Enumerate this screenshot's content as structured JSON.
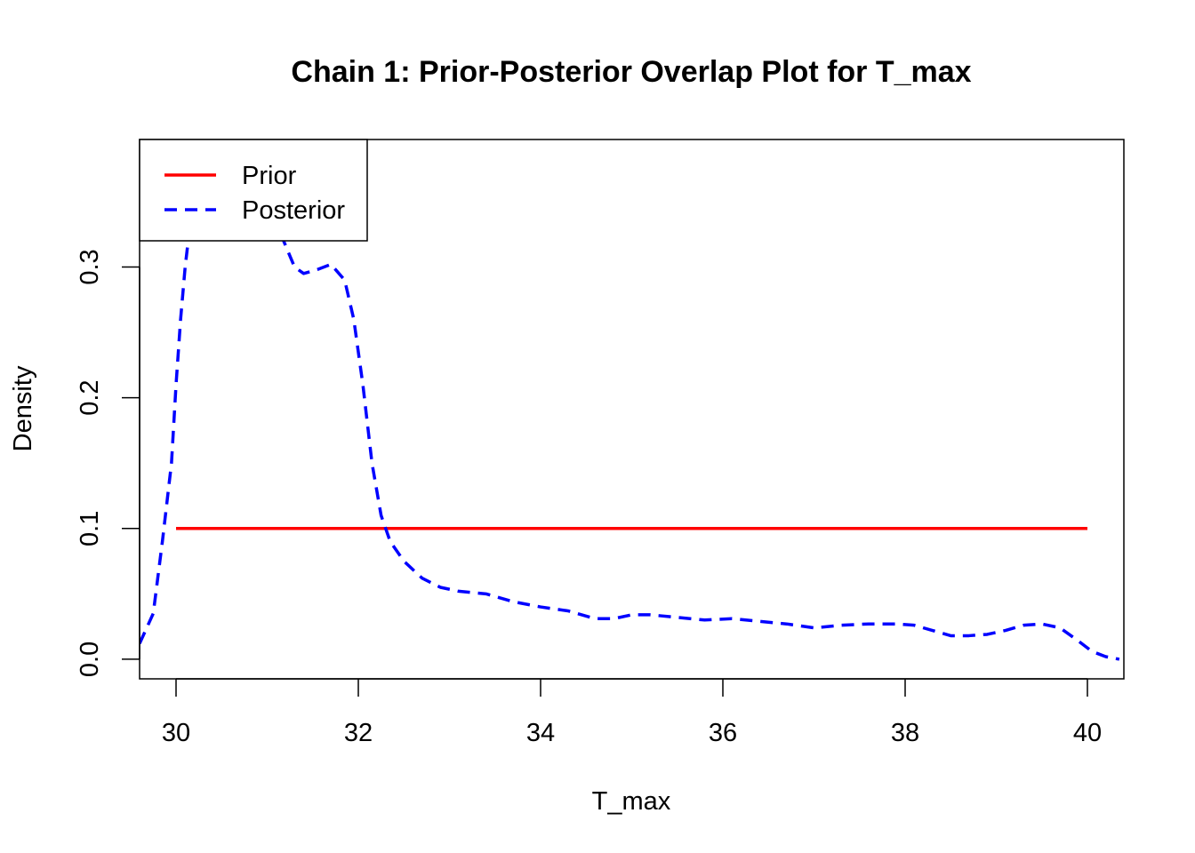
{
  "chart_data": {
    "type": "line",
    "title": "Chain 1: Prior-Posterior Overlap Plot for T_max",
    "xlabel": "T_max",
    "ylabel": "Density",
    "xlim": [
      29.6,
      40.4
    ],
    "ylim": [
      -0.015,
      0.3975
    ],
    "x_ticks": [
      30,
      32,
      34,
      36,
      38,
      40
    ],
    "x_tick_labels": [
      "30",
      "32",
      "34",
      "36",
      "38",
      "40"
    ],
    "y_ticks": [
      0.0,
      0.1,
      0.2,
      0.3
    ],
    "y_tick_labels": [
      "0.0",
      "0.1",
      "0.2",
      "0.3"
    ],
    "grid": false,
    "legend": {
      "position": "top-left"
    },
    "series": [
      {
        "name": "Prior",
        "color": "#ff0000",
        "style": "solid",
        "x": [
          30,
          40
        ],
        "y": [
          0.1,
          0.1
        ]
      },
      {
        "name": "Posterior",
        "color": "#0000ff",
        "style": "dashed",
        "x": [
          29.6,
          29.75,
          29.85,
          29.95,
          30.0,
          30.05,
          30.1,
          30.15,
          30.25,
          30.5,
          30.8,
          31.0,
          31.15,
          31.3,
          31.4,
          31.55,
          31.7,
          31.85,
          31.95,
          32.05,
          32.15,
          32.25,
          32.35,
          32.5,
          32.7,
          32.9,
          33.1,
          33.4,
          33.7,
          34.0,
          34.3,
          34.6,
          34.8,
          35.0,
          35.2,
          35.5,
          35.8,
          36.1,
          36.4,
          36.7,
          37.0,
          37.3,
          37.6,
          37.9,
          38.1,
          38.3,
          38.5,
          38.7,
          38.9,
          39.1,
          39.3,
          39.5,
          39.7,
          39.9,
          40.05,
          40.2,
          40.35
        ],
        "y": [
          0.012,
          0.035,
          0.09,
          0.15,
          0.21,
          0.26,
          0.3,
          0.33,
          0.36,
          0.38,
          0.37,
          0.35,
          0.325,
          0.3,
          0.295,
          0.298,
          0.302,
          0.29,
          0.26,
          0.21,
          0.15,
          0.11,
          0.09,
          0.075,
          0.062,
          0.055,
          0.052,
          0.05,
          0.044,
          0.04,
          0.037,
          0.031,
          0.031,
          0.034,
          0.034,
          0.032,
          0.03,
          0.031,
          0.029,
          0.027,
          0.024,
          0.026,
          0.027,
          0.027,
          0.026,
          0.022,
          0.018,
          0.018,
          0.019,
          0.022,
          0.026,
          0.027,
          0.024,
          0.014,
          0.006,
          0.002,
          0.0
        ]
      }
    ]
  }
}
